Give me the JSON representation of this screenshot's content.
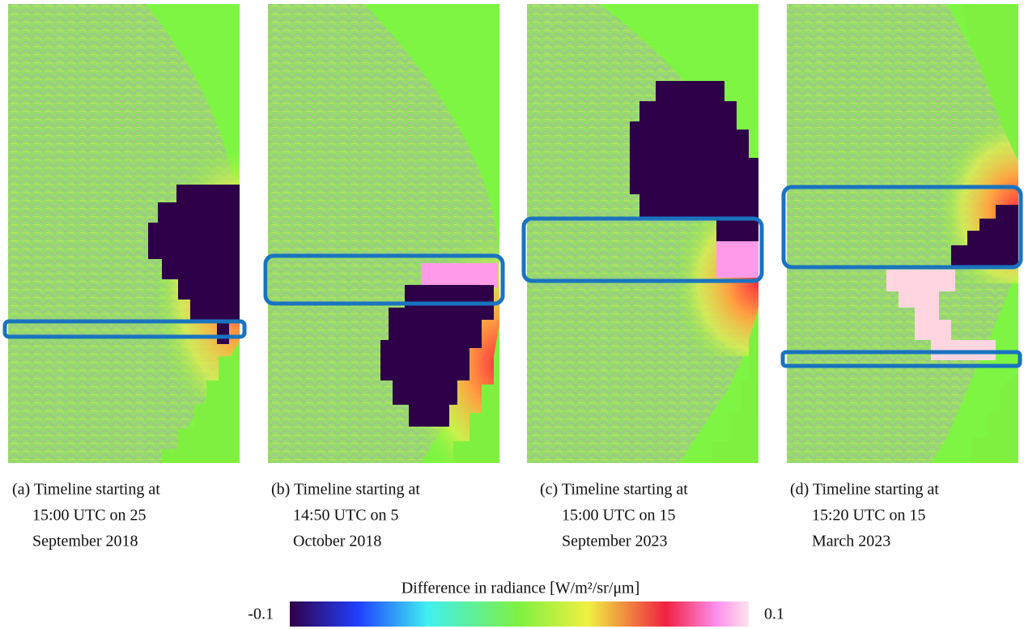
{
  "panels": [
    {
      "caption": [
        "(a) Timeline starting at",
        "15:00 UTC on 25",
        "September 2018"
      ]
    },
    {
      "caption": [
        "(b) Timeline starting at",
        "14:50 UTC on 5",
        "October 2018"
      ]
    },
    {
      "caption": [
        "(c) Timeline starting at",
        "15:00 UTC on 15",
        "September 2023"
      ]
    },
    {
      "caption": [
        "(d) Timeline starting at",
        "15:20 UTC on 15",
        "March 2023"
      ]
    }
  ],
  "colorbar": {
    "label": "Difference in radiance [W/m²/sr/μm]",
    "min": -0.1,
    "max": 0.1
  }
}
